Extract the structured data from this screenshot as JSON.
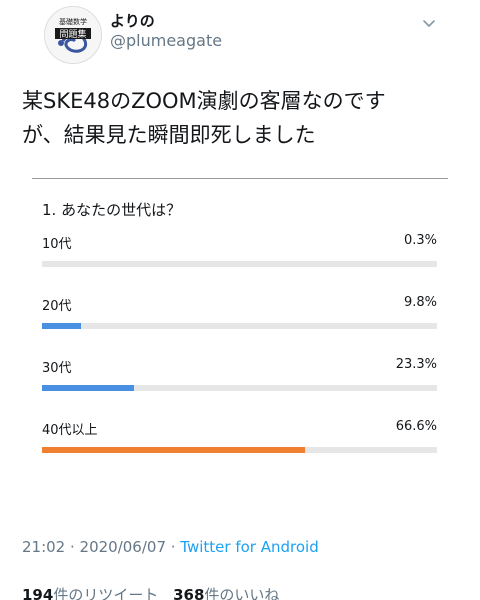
{
  "tweet": {
    "author_name": "よりの",
    "handle": "@plumeagate",
    "avatar": {
      "icon": "book-cover-avatar",
      "small_text": "基礎数学",
      "big_text": "問題集"
    },
    "menu_icon": "chevron-down-icon",
    "text_line1": "某SKE48のZOOM演劇の客層なのです",
    "text_line2": "が、結果見た瞬間即死しました"
  },
  "poll": {
    "question": "1. あなたの世代は？",
    "options": [
      {
        "label": "10代",
        "percent_text": "0.3%",
        "percent": 0.3,
        "color": "#e6e6e6"
      },
      {
        "label": "20代",
        "percent_text": "9.8%",
        "percent": 9.8,
        "color": "#4a90e2"
      },
      {
        "label": "30代",
        "percent_text": "23.3%",
        "percent": 23.3,
        "color": "#4a90e2"
      },
      {
        "label": "40代以上",
        "percent_text": "66.6%",
        "percent": 66.6,
        "color": "#f08030"
      }
    ]
  },
  "meta": {
    "timestamp": "21:02 · 2020/06/07 · ",
    "source": "Twitter for Android"
  },
  "stats": {
    "retweets_count": "194",
    "retweets_label": "件のリツイート",
    "likes_count": "368",
    "likes_label": "件のいいね"
  }
}
